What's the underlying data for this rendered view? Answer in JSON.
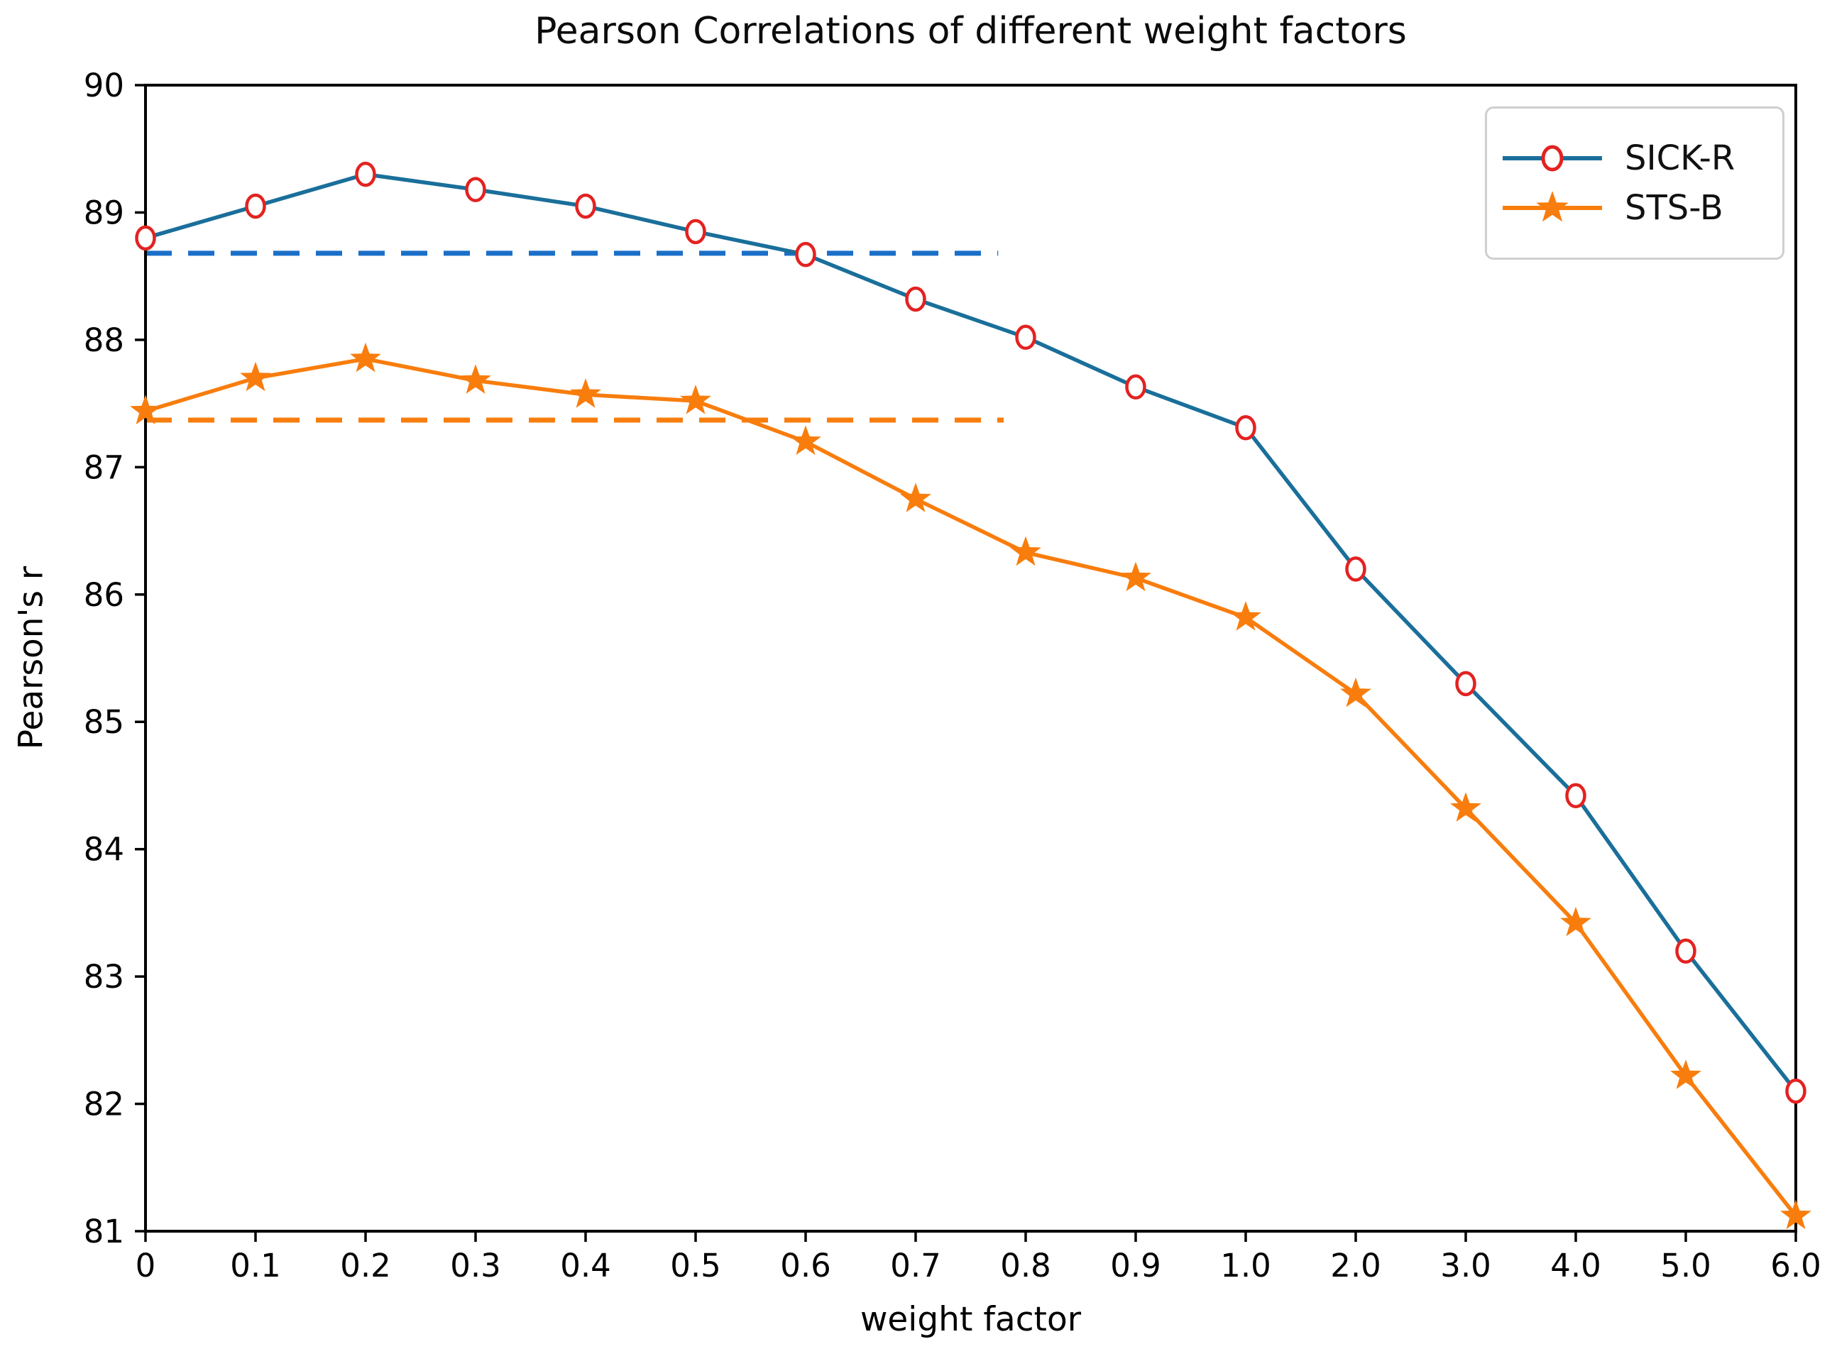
{
  "chart_data": {
    "type": "line",
    "title": "Pearson Correlations of different weight factors",
    "xlabel": "weight factor",
    "ylabel": "Pearson's r",
    "ylim": [
      81,
      90
    ],
    "grid": false,
    "x_tick_labels": [
      "0",
      "0.1",
      "0.2",
      "0.3",
      "0.4",
      "0.5",
      "0.6",
      "0.7",
      "0.8",
      "0.9",
      "1.0",
      "2.0",
      "3.0",
      "4.0",
      "5.0",
      "6.0"
    ],
    "y_tick_labels": [
      "90",
      "89",
      "88",
      "87",
      "86",
      "85",
      "84",
      "83",
      "82",
      "81"
    ],
    "series": [
      {
        "name": "SICK-R",
        "marker": "circle-open",
        "line_color": "#1a6f9a",
        "marker_color": "#e32220",
        "values": [
          88.8,
          89.05,
          89.3,
          89.18,
          89.05,
          88.85,
          88.67,
          88.32,
          88.02,
          87.63,
          87.31,
          86.2,
          85.3,
          84.42,
          83.2,
          82.1
        ]
      },
      {
        "name": "STS-B",
        "marker": "star",
        "line_color": "#f87d0d",
        "marker_color": "#f87d0d",
        "values": [
          87.44,
          87.7,
          87.85,
          87.68,
          87.57,
          87.52,
          87.2,
          86.75,
          86.33,
          86.13,
          85.82,
          85.22,
          84.32,
          83.42,
          82.22,
          81.12
        ]
      }
    ],
    "baselines": [
      {
        "series": "SICK-R",
        "value": 88.68,
        "color": "#1a6fc8",
        "x_start_index": 0,
        "x_end_index": 7.75
      },
      {
        "series": "STS-B",
        "value": 87.37,
        "color": "#f87d0d",
        "x_start_index": 0,
        "x_end_index": 7.8
      }
    ],
    "legend": {
      "position": "upper right",
      "entries": [
        "SICK-R",
        "STS-B"
      ]
    },
    "axis_color": "#000000",
    "background_color": "#ffffff"
  }
}
